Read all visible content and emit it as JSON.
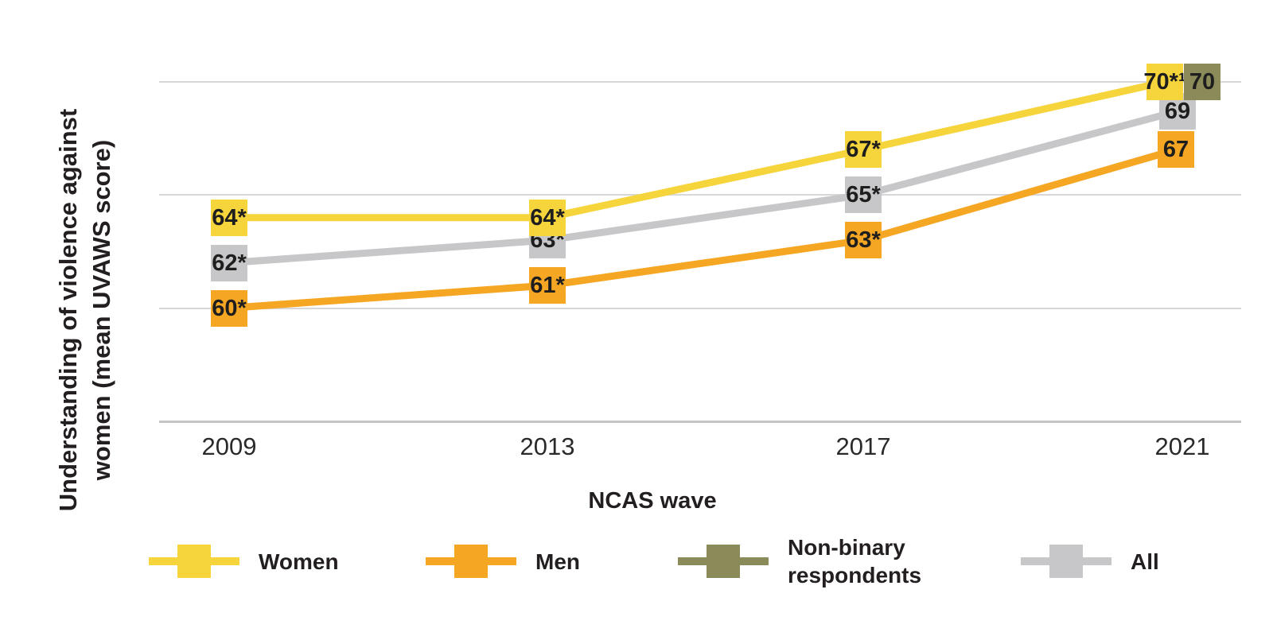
{
  "axes": {
    "ylabel_line1": "Understanding of violence against",
    "ylabel_line2": "women (mean UVAWS score)",
    "xlabel": "NCAS wave"
  },
  "chart_data": {
    "type": "line",
    "title": "",
    "xlabel": "NCAS wave",
    "ylabel": "Understanding of violence against women (mean UVAWS score)",
    "x_ticks": [
      "2009",
      "2013",
      "2017",
      "2021"
    ],
    "ylim": [
      55,
      71
    ],
    "gridline_values": [
      60,
      65,
      70
    ],
    "grid": "horizontal-only",
    "legend_position": "bottom",
    "series": [
      {
        "name": "All",
        "color": "#C7C7C9",
        "values": [
          62,
          63,
          65,
          69
        ],
        "point_labels": [
          "62*",
          "63*",
          "65*",
          "69"
        ]
      },
      {
        "name": "Men",
        "color": "#F5A623",
        "values": [
          60,
          61,
          63,
          67
        ],
        "point_labels": [
          "60*",
          "61*",
          "63*",
          "67"
        ]
      },
      {
        "name": "Women",
        "color": "#F6D43C",
        "values": [
          64,
          64,
          67,
          70
        ],
        "point_labels": [
          "64*",
          "64*",
          "67*",
          "70*¹"
        ]
      },
      {
        "name": "Non-binary respondents",
        "color": "#8A8B59",
        "values": [
          null,
          null,
          null,
          70
        ],
        "point_labels": [
          null,
          null,
          null,
          "70"
        ]
      }
    ]
  },
  "legend": {
    "items": [
      {
        "label": "Women",
        "color": "#F6D43C"
      },
      {
        "label": "Men",
        "color": "#F5A623"
      },
      {
        "label": "Non-binary respondents",
        "color": "#8A8B59"
      },
      {
        "label": "All",
        "color": "#C7C7C9"
      }
    ]
  },
  "colors": {
    "background": "#FFFFFF",
    "text": "#231F20",
    "gridline": "#D7D7D7",
    "axis_line": "#C5C5C7"
  }
}
